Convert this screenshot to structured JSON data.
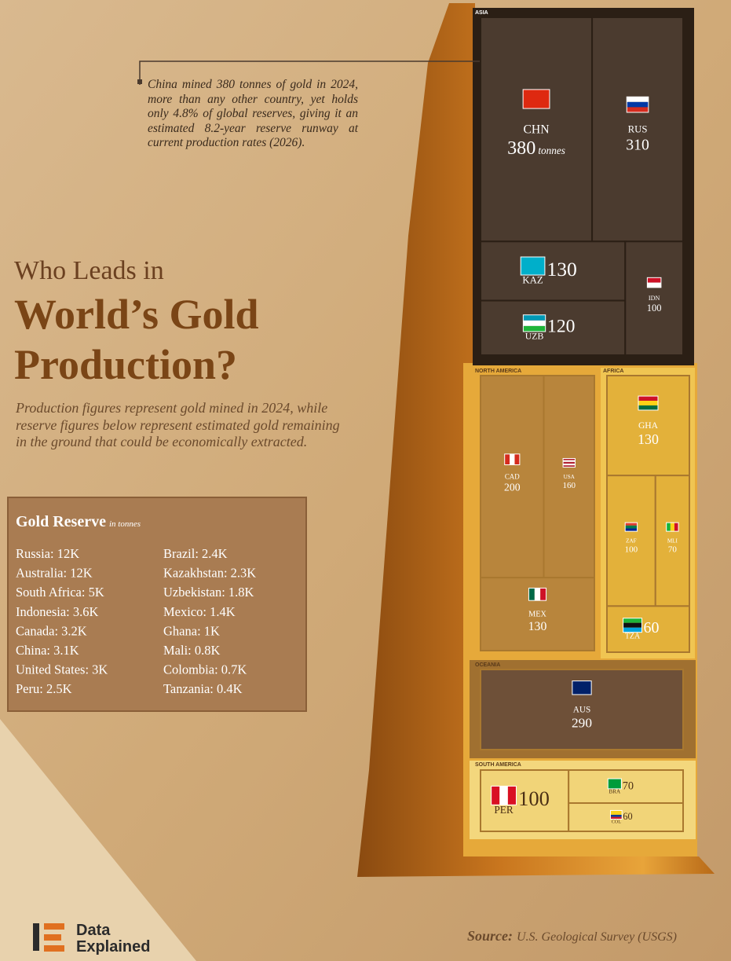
{
  "chart_data": {
    "type": "treemap",
    "title": [
      "Who Leads in",
      "World’s Gold",
      "Production?"
    ],
    "subtitle": "Production figures represent gold mined in 2024, while reserve figures below represent estimated gold remaining in the ground that could be economically extracted.",
    "annotation": "China mined 380 tonnes of gold in 2024, more than any other country, yet holds only 4.8% of global reserves, giving it an estimated 8.2-year reserve runway at current production rates (2026).",
    "unit": "tonnes",
    "series": [
      {
        "name": "ASIA",
        "color": "#4b3b2f",
        "categories": [
          "CHN",
          "RUS",
          "KAZ",
          "UZB",
          "IDN"
        ],
        "values": [
          380,
          310,
          130,
          120,
          100
        ]
      },
      {
        "name": "NORTH AMERICA",
        "color": "#b8853c",
        "categories": [
          "CAD",
          "USA",
          "MEX"
        ],
        "values": [
          200,
          160,
          130
        ]
      },
      {
        "name": "AFRICA",
        "color": "#e3b13a",
        "categories": [
          "GHA",
          "ZAF",
          "MLI",
          "TZA"
        ],
        "values": [
          130,
          100,
          70,
          60
        ]
      },
      {
        "name": "OCEANIA",
        "color": "#6e5038",
        "categories": [
          "AUS"
        ],
        "values": [
          290
        ]
      },
      {
        "name": "SOUTH AMERICA",
        "color": "#f1d478",
        "categories": [
          "PER",
          "BRA",
          "COL"
        ],
        "values": [
          100,
          70,
          60
        ]
      }
    ]
  },
  "reserve_table": {
    "title": "Gold Reserve",
    "unit": "in tonnes",
    "rows": [
      "Russia: 12K",
      "Australia: 12K",
      "South Africa: 5K",
      "Indonesia: 3.6K",
      "Canada: 3.2K",
      "China: 3.1K",
      "United States: 3K",
      "Peru: 2.5K",
      "Brazil: 2.4K",
      "Kazakhstan: 2.3K",
      "Uzbekistan: 1.8K",
      "Mexico: 1.4K",
      "Ghana: 1K",
      "Mali: 0.8K",
      "Colombia: 0.7K",
      "Tanzania: 0.4K"
    ]
  },
  "logo": [
    "Data",
    "Explained"
  ],
  "source": {
    "label": "Source:",
    "text": "U.S. Geological Survey (USGS)"
  }
}
